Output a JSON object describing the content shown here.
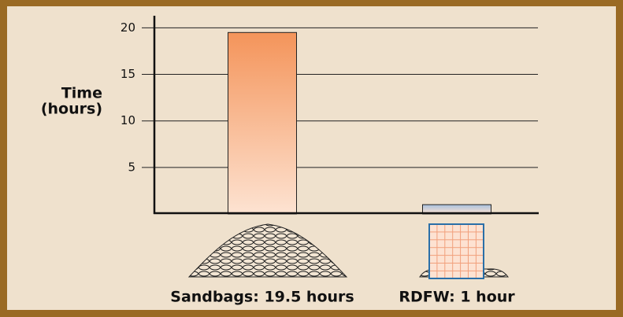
{
  "chart_data": {
    "type": "bar",
    "y_label": [
      "Time",
      "(hours)"
    ],
    "categories": [
      "Sandbags: 19.5 hours",
      "RDFW: 1 hour"
    ],
    "values": [
      19.5,
      1
    ],
    "colors": [
      "#f4945a",
      "#a9c1de"
    ],
    "ylim": [
      0,
      21.3
    ],
    "yticks": [
      5,
      10,
      15,
      20
    ],
    "grid": true
  }
}
